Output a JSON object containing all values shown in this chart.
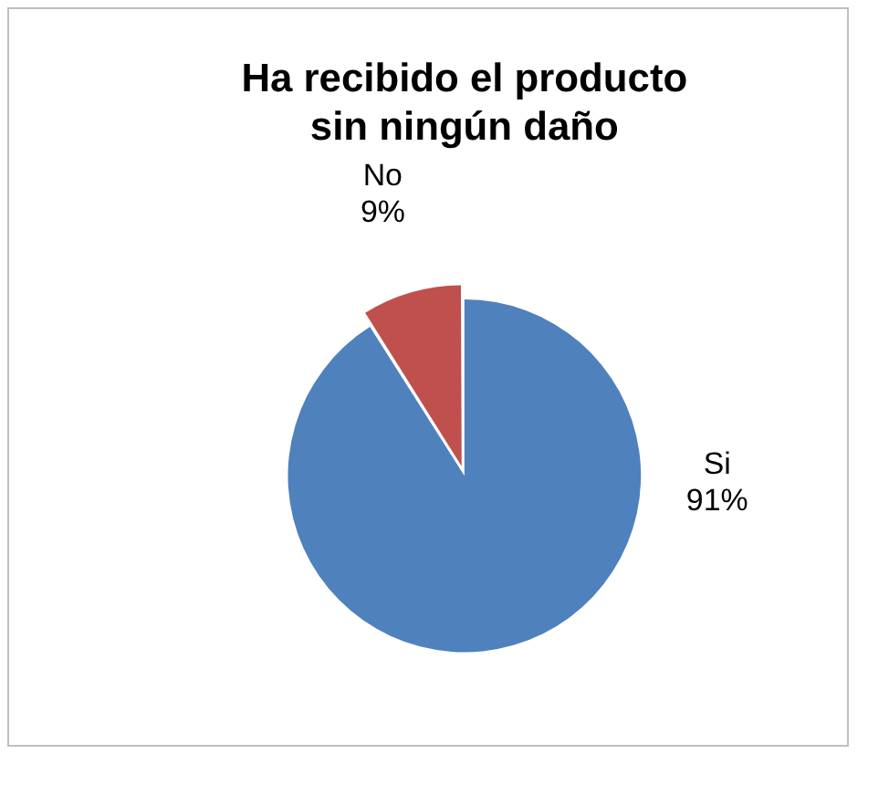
{
  "chart_data": {
    "type": "pie",
    "title": "Ha recibido el producto sin ningún daño",
    "categories": [
      "Si",
      "No"
    ],
    "values": [
      91,
      9
    ],
    "colors": [
      "#4f81bd",
      "#c0504d"
    ],
    "value_labels": [
      "91%",
      "9%"
    ],
    "legend": false
  }
}
